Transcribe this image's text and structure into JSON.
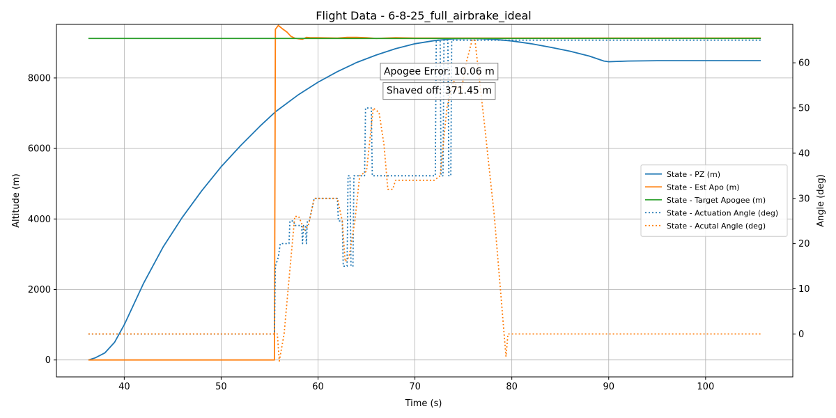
{
  "chart_data": {
    "type": "line",
    "title": "Flight Data - 6-8-25_full_airbrake_ideal",
    "xlabel": "Time (s)",
    "ylabel": "Altitude (m)",
    "ylabel_right": "Angle (deg)",
    "xlim": [
      33,
      109
    ],
    "ylim": [
      -480,
      9520
    ],
    "ylim_right": [
      -9.5,
      68.5
    ],
    "xticks": [
      40,
      50,
      60,
      70,
      80,
      90,
      100
    ],
    "yticks": [
      0,
      2000,
      4000,
      6000,
      8000
    ],
    "yticks_right": [
      0,
      10,
      20,
      30,
      40,
      50,
      60
    ],
    "grid": true,
    "legend_position": "center-right",
    "annotations": [
      {
        "text": "Apogee Error: 10.06 m",
        "x": 72.5,
        "y": 8200
      },
      {
        "text": "Shaved off: 371.45 m",
        "x": 72.5,
        "y": 7650
      }
    ],
    "series": [
      {
        "name": "State - PZ (m)",
        "axis": "left",
        "color": "#1f77b4",
        "style": "solid",
        "x": [
          36.3,
          37,
          38,
          39,
          40,
          42,
          44,
          46,
          48,
          50,
          52,
          54,
          55.6,
          58,
          60,
          62,
          64,
          66,
          68,
          70,
          72,
          74,
          76,
          78,
          80,
          82,
          84,
          86,
          88,
          89.5,
          90,
          92,
          95,
          100,
          105.7
        ],
        "y": [
          0,
          60,
          200,
          500,
          1000,
          2180,
          3200,
          4050,
          4800,
          5480,
          6080,
          6630,
          7040,
          7530,
          7880,
          8180,
          8440,
          8650,
          8830,
          8970,
          9060,
          9110,
          9120,
          9100,
          9050,
          8970,
          8870,
          8760,
          8620,
          8480,
          8460,
          8480,
          8490,
          8490,
          8490
        ]
      },
      {
        "name": "State - Est Apo (m)",
        "axis": "left",
        "color": "#ff7f0e",
        "style": "solid",
        "x": [
          36.3,
          55.5,
          55.6,
          55.9,
          56.3,
          56.8,
          57.2,
          57.6,
          58,
          58.4,
          58.8,
          59.2,
          60,
          62,
          63,
          64,
          65,
          66,
          68,
          70,
          105.7
        ],
        "y": [
          0,
          0,
          9380,
          9490,
          9400,
          9300,
          9180,
          9130,
          9110,
          9100,
          9150,
          9140,
          9140,
          9130,
          9150,
          9150,
          9140,
          9120,
          9140,
          9130,
          9130
        ]
      },
      {
        "name": "State - Target Apogee (m)",
        "axis": "left",
        "color": "#2ca02c",
        "style": "solid",
        "x": [
          36.3,
          105.7
        ],
        "y": [
          9120,
          9120
        ]
      },
      {
        "name": "State - Actuation Angle (deg)",
        "axis": "right",
        "color": "#1f77b4",
        "style": "dotted",
        "x": [
          36.3,
          55.5,
          55.6,
          55.9,
          56.1,
          57,
          57.1,
          57.5,
          57.6,
          58.3,
          58.4,
          58.5,
          58.7,
          58.8,
          58.9,
          59.1,
          59.5,
          59.6,
          62,
          62.1,
          62.5,
          62.6,
          63,
          63.1,
          63.3,
          63.4,
          63.6,
          63.7,
          64,
          64.1,
          64.8,
          64.9,
          65.5,
          65.6,
          72.1,
          72.2,
          72.6,
          72.7,
          72.9,
          73,
          73.4,
          73.5,
          73.7,
          73.8,
          105.7
        ],
        "y": [
          0,
          0,
          15,
          17,
          20,
          20,
          25,
          25,
          24,
          24,
          20,
          24,
          24,
          20,
          25,
          25,
          29,
          30,
          30,
          25,
          25,
          15,
          15,
          35,
          35,
          15,
          15,
          35,
          35,
          35,
          35,
          50,
          50,
          35,
          35,
          65,
          65,
          35,
          35,
          65,
          65,
          35,
          35,
          65,
          65
        ]
      },
      {
        "name": "State - Acutal Angle (deg)",
        "axis": "right",
        "color": "#ff7f0e",
        "style": "dotted",
        "x": [
          36.3,
          55.8,
          56,
          56.5,
          57,
          57.6,
          58,
          58.6,
          59,
          59.6,
          60,
          61,
          62,
          62.5,
          62.8,
          63.2,
          63.8,
          64.3,
          65,
          65.7,
          66.3,
          66.8,
          67.2,
          67.7,
          68,
          72,
          72.6,
          73.3,
          74,
          74.7,
          75.3,
          75.9,
          76.2,
          77.2,
          78.2,
          79.4,
          79.6,
          80,
          105.7
        ],
        "y": [
          0,
          0,
          -6,
          0,
          12,
          26,
          26,
          23,
          24,
          30,
          30,
          30,
          30,
          25,
          16,
          17,
          25,
          35,
          36,
          50,
          49,
          42,
          32,
          32,
          34,
          34,
          35,
          50,
          56,
          53,
          60,
          65,
          65,
          46,
          26,
          -5,
          0,
          0,
          0
        ]
      }
    ]
  }
}
